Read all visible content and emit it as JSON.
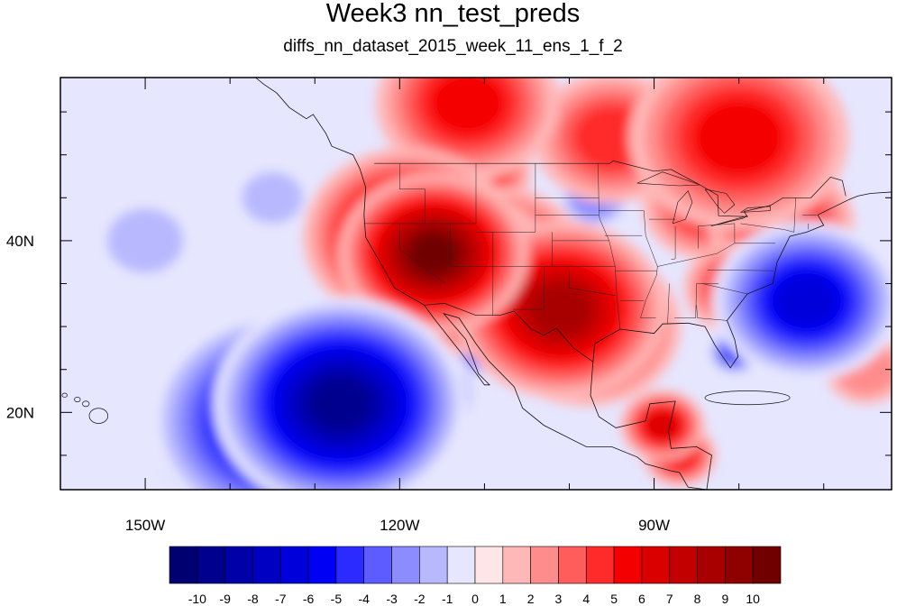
{
  "title": "Week3 nn_test_preds",
  "subtitle": "diffs_nn_dataset_2015_week_11_ens_1_f_2",
  "map": {
    "lon_range": [
      -160,
      -62
    ],
    "lat_range": [
      11,
      59
    ],
    "x_ticks": [
      {
        "lon": -150,
        "label": "150W"
      },
      {
        "lon": -120,
        "label": "120W"
      },
      {
        "lon": -90,
        "label": "90W"
      }
    ],
    "y_ticks": [
      {
        "lat": 20,
        "label": "20N"
      },
      {
        "lat": 40,
        "label": "40N"
      }
    ],
    "field": [
      {
        "lon": -116,
        "lat": 38.5,
        "value": 10,
        "r": 3
      },
      {
        "lon": -119,
        "lat": 40.5,
        "value": 8,
        "r": 4
      },
      {
        "lon": -112,
        "lat": 36,
        "value": 7,
        "r": 4
      },
      {
        "lon": -108,
        "lat": 38,
        "value": 6,
        "r": 4
      },
      {
        "lon": -101,
        "lat": 32,
        "value": 8,
        "r": 4
      },
      {
        "lon": -98,
        "lat": 30,
        "value": 7,
        "r": 4
      },
      {
        "lon": -89,
        "lat": 18.5,
        "value": 6,
        "r": 2
      },
      {
        "lon": -87,
        "lat": 15,
        "value": 5,
        "r": 2
      },
      {
        "lon": -75,
        "lat": 42,
        "value": 5,
        "r": 4
      },
      {
        "lon": -84,
        "lat": 44,
        "value": 4,
        "r": 4
      },
      {
        "lon": -80,
        "lat": 34.5,
        "value": 5,
        "r": 3
      },
      {
        "lon": -80,
        "lat": 52,
        "value": 5,
        "r": 6
      },
      {
        "lon": -95,
        "lat": 52,
        "value": 4,
        "r": 5
      },
      {
        "lon": -112,
        "lat": 56,
        "value": 5,
        "r": 5
      },
      {
        "lon": -110,
        "lat": 48,
        "value": 4,
        "r": 3
      },
      {
        "lon": -124,
        "lat": 30,
        "value": 3,
        "r": 3
      },
      {
        "lon": -127,
        "lat": 21,
        "value": -10,
        "r": 4
      },
      {
        "lon": -134,
        "lat": 19,
        "value": -8,
        "r": 5
      },
      {
        "lon": -140,
        "lat": 16,
        "value": -6,
        "r": 4
      },
      {
        "lon": -118,
        "lat": 22,
        "value": -6,
        "r": 3
      },
      {
        "lon": -72,
        "lat": 33,
        "value": -7,
        "r": 4
      },
      {
        "lon": -76,
        "lat": 31,
        "value": -5,
        "r": 3
      },
      {
        "lon": -80.5,
        "lat": 27,
        "value": -5,
        "r": 1.5
      },
      {
        "lon": -117,
        "lat": 31,
        "value": -5,
        "r": 2
      },
      {
        "lon": -113,
        "lat": 26,
        "value": -4,
        "r": 2
      },
      {
        "lon": -97,
        "lat": 45,
        "value": -3,
        "r": 3
      },
      {
        "lon": -150,
        "lat": 40,
        "value": -2,
        "r": 5
      },
      {
        "lon": -135,
        "lat": 45,
        "value": -2,
        "r": 4
      },
      {
        "lon": -140,
        "lat": 33,
        "value": -1,
        "r": 6
      },
      {
        "lon": -65,
        "lat": 25,
        "value": 2,
        "r": 4
      },
      {
        "lon": -145,
        "lat": 22,
        "value": 2,
        "r": 3
      }
    ]
  },
  "colorbar": {
    "labels": [
      "-10",
      "-9",
      "-8",
      "-7",
      "-6",
      "-5",
      "-4",
      "-3",
      "-2",
      "-1",
      "0",
      "1",
      "2",
      "3",
      "4",
      "5",
      "6",
      "7",
      "8",
      "9",
      "10"
    ],
    "colors": [
      "#000070",
      "#00008f",
      "#0000a8",
      "#0000c2",
      "#0000db",
      "#0000f5",
      "#2b2bff",
      "#5c5cff",
      "#8c8cff",
      "#b8b8ff",
      "#e6e6ff",
      "#ffe6e6",
      "#ffb8b8",
      "#ff8c8c",
      "#ff5c5c",
      "#ff2b2b",
      "#f50000",
      "#db0000",
      "#c20000",
      "#a80000",
      "#8f0000",
      "#700000"
    ]
  }
}
